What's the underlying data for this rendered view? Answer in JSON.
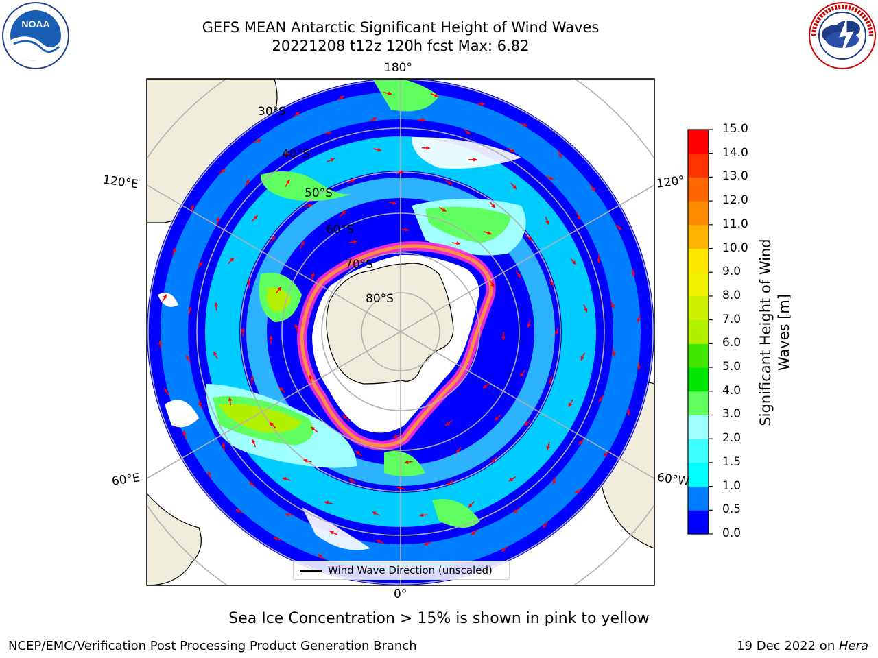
{
  "title": {
    "line1": "GEFS MEAN Antarctic Significant Height of Wind Waves",
    "line2": "20221208 t12z 120h fcst   Max: 6.82"
  },
  "logos": {
    "noaa_text": "NOAA",
    "noaa_ring": "NATIONAL OCEANIC AND ATMOSPHERIC ADMINISTRATION · U.S. DEPARTMENT OF COMMERCE",
    "nws_ring": "NATIONAL WEATHER SERVICE"
  },
  "map": {
    "longitude_labels": {
      "top": "180°",
      "bottom": "0°",
      "upper_left": "120°E",
      "upper_right": "120°",
      "lower_left": "60°E",
      "lower_right": "60°W"
    },
    "latitude_labels": [
      "30°S",
      "40°S",
      "50°S",
      "60°S",
      "70°S",
      "80°S"
    ],
    "legend_label": "Wind Wave Direction (unscaled)",
    "ocean_color": "#0000ff",
    "land_color": "#efecdc",
    "arrow_color": "#ff0000",
    "grid_color": "#b0b0b0",
    "sea_ice_colors": [
      "#ff33cc",
      "#ff9933",
      "#ffd24d"
    ]
  },
  "colorbar": {
    "label": "Significant Height of Wind Waves [m]",
    "label_line1": "Significant Height of Wind",
    "label_line2": "Waves [m]",
    "ticks": [
      "0.0",
      "0.5",
      "1.0",
      "1.5",
      "2.0",
      "3.0",
      "4.0",
      "5.0",
      "6.0",
      "7.0",
      "8.0",
      "9.0",
      "10.0",
      "11.0",
      "12.0",
      "13.0",
      "14.0",
      "15.0"
    ],
    "colors": [
      "#0000ff",
      "#0080ff",
      "#00ffff",
      "#40ffff",
      "#a0ffff",
      "#60ff60",
      "#00e600",
      "#40e600",
      "#b2f000",
      "#ccf000",
      "#f0f000",
      "#ffe600",
      "#ffb300",
      "#ff8c00",
      "#ff6600",
      "#ff3300",
      "#ff0000"
    ]
  },
  "bottom_note": "Sea Ice Concentration > 15% is shown in pink to yellow",
  "footer": {
    "left": "NCEP/EMC/Verification Post Processing Product Generation Branch",
    "right_prefix": "19 Dec 2022 on ",
    "right_host": "Hera"
  }
}
